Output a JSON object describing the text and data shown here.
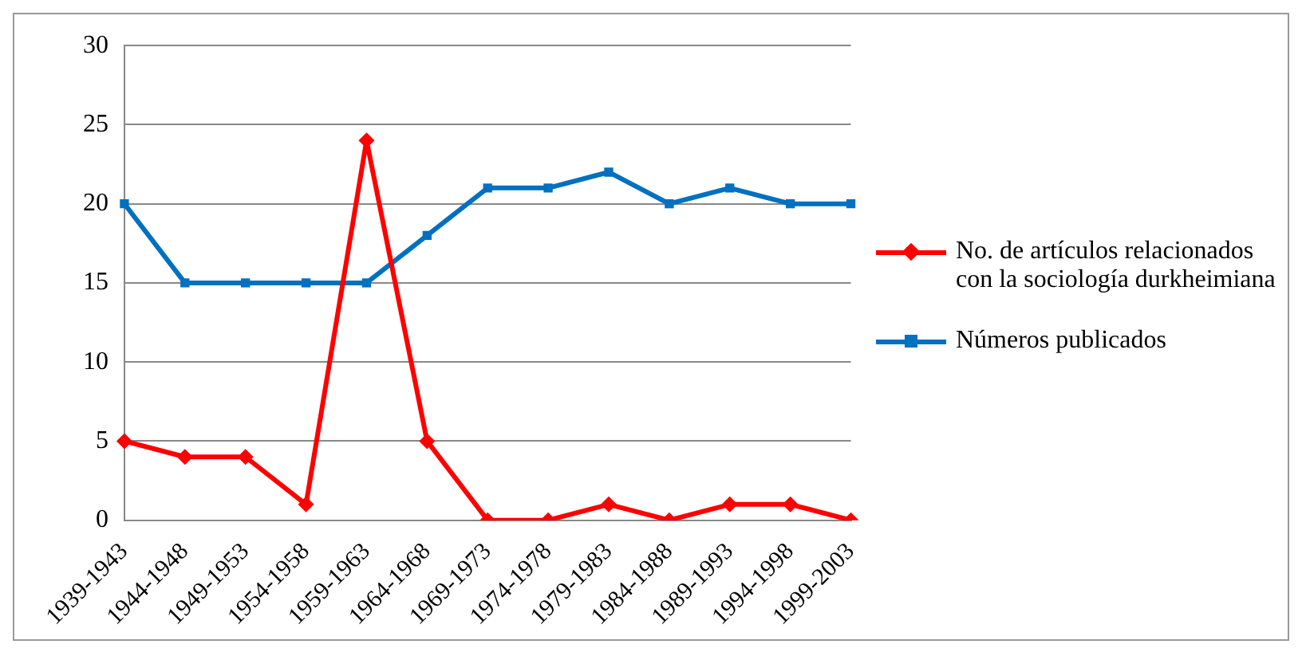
{
  "chart_data": {
    "type": "line",
    "categories": [
      "1939-1943",
      "1944-1948",
      "1949-1953",
      "1954-1958",
      "1959-1963",
      "1964-1968",
      "1969-1973",
      "1974-1978",
      "1979-1983",
      "1984-1988",
      "1989-1993",
      "1994-1998",
      "1999-2003"
    ],
    "series": [
      {
        "name": "No. de artículos relacionados con la sociología durkheimiana",
        "color": "#ff0000",
        "marker": "diamond",
        "values": [
          5,
          4,
          4,
          1,
          24,
          5,
          0,
          0,
          1,
          0,
          1,
          1,
          0
        ]
      },
      {
        "name": "Números publicados",
        "color": "#0070c0",
        "marker": "square",
        "values": [
          20,
          15,
          15,
          15,
          15,
          18,
          21,
          21,
          22,
          20,
          21,
          20,
          20
        ]
      }
    ],
    "ylim": [
      0,
      30
    ],
    "yticks": [
      0,
      5,
      10,
      15,
      20,
      25,
      30
    ],
    "grid": "y",
    "legend": "right"
  }
}
